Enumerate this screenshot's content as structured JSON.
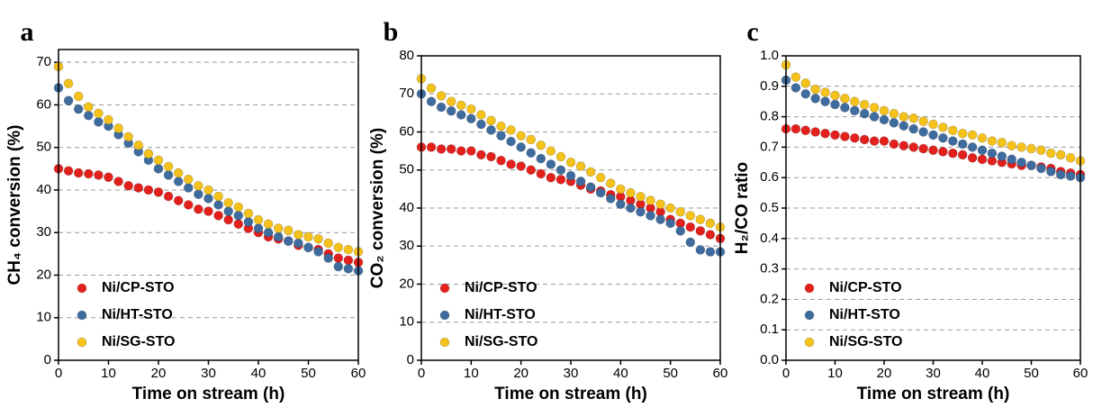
{
  "chart_data": [
    {
      "type": "scatter",
      "panel": "a",
      "x_label": "Time on stream (h)",
      "y_label": "CH₄ conversion (%)",
      "x": [
        0,
        2,
        4,
        6,
        8,
        10,
        12,
        14,
        16,
        18,
        20,
        22,
        24,
        26,
        28,
        30,
        32,
        34,
        36,
        38,
        40,
        42,
        44,
        46,
        48,
        50,
        52,
        54,
        56,
        58,
        60
      ],
      "xlim": [
        0,
        60
      ],
      "xticks": [
        0,
        10,
        20,
        30,
        40,
        50,
        60
      ],
      "ylim": [
        0,
        73
      ],
      "yticks": [
        0,
        10,
        20,
        30,
        40,
        50,
        60,
        70
      ],
      "grid": true,
      "legend": "lower left",
      "series": [
        {
          "name": "Ni/CP-STO",
          "color": "#e3201c",
          "values": [
            45,
            44.5,
            44,
            43.8,
            43.5,
            43,
            42,
            41,
            40.5,
            40,
            39.5,
            38.5,
            37.5,
            36.5,
            35.5,
            35,
            34,
            33,
            32,
            31,
            30,
            29,
            28.5,
            28,
            27,
            26.5,
            26,
            25,
            24,
            23.5,
            23
          ]
        },
        {
          "name": "Ni/HT-STO",
          "color": "#3f6c9f",
          "values": [
            64,
            61,
            59,
            57.5,
            56,
            55,
            53,
            51,
            49,
            47,
            45,
            43.5,
            42,
            40.5,
            39,
            38,
            36.5,
            35,
            34,
            32.5,
            31,
            30,
            29,
            28,
            27.5,
            26.5,
            25.5,
            24,
            22,
            21.5,
            21
          ]
        },
        {
          "name": "Ni/SG-STO",
          "color": "#f4c21b",
          "values": [
            69,
            65,
            62,
            59.5,
            58,
            56.5,
            54.5,
            52.5,
            50.5,
            48.5,
            47,
            45.5,
            44,
            42.5,
            41,
            40,
            38.5,
            37,
            36,
            34.5,
            33,
            32,
            31,
            30.5,
            29.5,
            29,
            28.5,
            27.5,
            26.5,
            26,
            25.5
          ]
        }
      ]
    },
    {
      "type": "scatter",
      "panel": "b",
      "x_label": "Time on stream (h)",
      "y_label": "CO₂ conversion (%)",
      "x": [
        0,
        2,
        4,
        6,
        8,
        10,
        12,
        14,
        16,
        18,
        20,
        22,
        24,
        26,
        28,
        30,
        32,
        34,
        36,
        38,
        40,
        42,
        44,
        46,
        48,
        50,
        52,
        54,
        56,
        58,
        60
      ],
      "xlim": [
        0,
        60
      ],
      "xticks": [
        0,
        10,
        20,
        30,
        40,
        50,
        60
      ],
      "ylim": [
        0,
        80
      ],
      "yticks": [
        0,
        10,
        20,
        30,
        40,
        50,
        60,
        70,
        80
      ],
      "grid": true,
      "legend": "lower left",
      "series": [
        {
          "name": "Ni/CP-STO",
          "color": "#e3201c",
          "values": [
            56,
            56,
            55.5,
            55.5,
            55,
            55,
            54,
            53.5,
            52.5,
            51.5,
            51,
            50,
            49,
            48,
            47.5,
            47,
            46,
            45,
            44.5,
            43.5,
            43,
            42,
            41,
            40,
            39,
            37,
            36,
            35,
            34,
            33,
            32
          ]
        },
        {
          "name": "Ni/HT-STO",
          "color": "#3f6c9f",
          "values": [
            70,
            68,
            66.5,
            65.5,
            64.5,
            63.5,
            62,
            60.5,
            59,
            57.5,
            56,
            54.5,
            53,
            51.5,
            50,
            48.5,
            47,
            45.5,
            44,
            42.5,
            41,
            40,
            39,
            38,
            37,
            36,
            34,
            31,
            29,
            28.5,
            28.5
          ]
        },
        {
          "name": "Ni/SG-STO",
          "color": "#f4c21b",
          "values": [
            74,
            71.5,
            69.5,
            68,
            67,
            66,
            64.5,
            63,
            61.5,
            60.5,
            59,
            58,
            56.5,
            55,
            53.5,
            52,
            51,
            49.5,
            48,
            46.5,
            45,
            44,
            43,
            42,
            41,
            40,
            39,
            38,
            37,
            36,
            35
          ]
        }
      ]
    },
    {
      "type": "scatter",
      "panel": "c",
      "x_label": "Time on stream (h)",
      "y_label": "H₂/CO ratio",
      "x": [
        0,
        2,
        4,
        6,
        8,
        10,
        12,
        14,
        16,
        18,
        20,
        22,
        24,
        26,
        28,
        30,
        32,
        34,
        36,
        38,
        40,
        42,
        44,
        46,
        48,
        50,
        52,
        54,
        56,
        58,
        60
      ],
      "xlim": [
        0,
        60
      ],
      "xticks": [
        0,
        10,
        20,
        30,
        40,
        50,
        60
      ],
      "ylim": [
        0,
        1
      ],
      "yticks": [
        {
          "value": 0,
          "label": "0.0"
        },
        0.1,
        0.2,
        0.3,
        0.4,
        0.5,
        0.6,
        0.7,
        0.8,
        0.9,
        {
          "value": 1,
          "label": "1.0"
        }
      ],
      "grid": true,
      "legend": "lower left",
      "series": [
        {
          "name": "Ni/CP-STO",
          "color": "#e3201c",
          "values": [
            0.76,
            0.76,
            0.755,
            0.75,
            0.745,
            0.74,
            0.735,
            0.73,
            0.725,
            0.72,
            0.72,
            0.71,
            0.705,
            0.7,
            0.695,
            0.69,
            0.685,
            0.68,
            0.675,
            0.665,
            0.66,
            0.655,
            0.65,
            0.645,
            0.64,
            0.64,
            0.635,
            0.63,
            0.62,
            0.615,
            0.61
          ]
        },
        {
          "name": "Ni/HT-STO",
          "color": "#3f6c9f",
          "values": [
            0.92,
            0.895,
            0.875,
            0.86,
            0.85,
            0.84,
            0.83,
            0.82,
            0.81,
            0.8,
            0.79,
            0.78,
            0.77,
            0.76,
            0.75,
            0.74,
            0.73,
            0.72,
            0.71,
            0.7,
            0.69,
            0.68,
            0.67,
            0.66,
            0.65,
            0.64,
            0.63,
            0.62,
            0.61,
            0.605,
            0.6
          ]
        },
        {
          "name": "Ni/SG-STO",
          "color": "#f4c21b",
          "values": [
            0.97,
            0.93,
            0.91,
            0.89,
            0.88,
            0.87,
            0.86,
            0.85,
            0.84,
            0.83,
            0.82,
            0.81,
            0.8,
            0.795,
            0.785,
            0.775,
            0.765,
            0.755,
            0.745,
            0.74,
            0.73,
            0.72,
            0.715,
            0.705,
            0.7,
            0.695,
            0.69,
            0.68,
            0.675,
            0.665,
            0.655
          ]
        }
      ]
    }
  ]
}
